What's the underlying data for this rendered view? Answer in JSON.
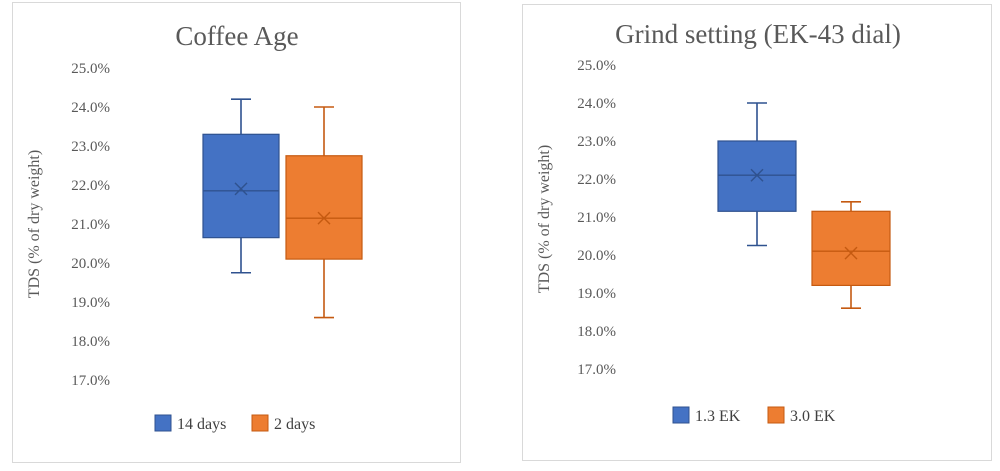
{
  "chart_data": [
    {
      "type": "box",
      "title": "Coffee Age",
      "ylabel": "TDS (% of dry weight)",
      "ylim": [
        17.0,
        25.0
      ],
      "ytick_step": 1.0,
      "ytick_labels": [
        "17.0%",
        "18.0%",
        "19.0%",
        "20.0%",
        "21.0%",
        "22.0%",
        "23.0%",
        "24.0%",
        "25.0%"
      ],
      "grid": false,
      "legend_position": "bottom",
      "series": [
        {
          "name": "14 days",
          "color": "#4472C4",
          "edge_color": "#2F528F",
          "min": 19.75,
          "q1": 20.65,
          "median": 21.85,
          "mean": 21.9,
          "q3": 23.3,
          "max": 24.2
        },
        {
          "name": "2 days",
          "color": "#ED7D31",
          "edge_color": "#C55A11",
          "min": 18.6,
          "q1": 20.1,
          "median": 21.15,
          "mean": 21.15,
          "q3": 22.75,
          "max": 24.0
        }
      ]
    },
    {
      "type": "box",
      "title": "Grind setting (EK-43 dial)",
      "ylabel": "TDS (% of dry weight)",
      "ylim": [
        17.0,
        25.0
      ],
      "ytick_step": 1.0,
      "ytick_labels": [
        "17.0%",
        "18.0%",
        "19.0%",
        "20.0%",
        "21.0%",
        "22.0%",
        "23.0%",
        "24.0%",
        "25.0%"
      ],
      "grid": false,
      "legend_position": "bottom",
      "series": [
        {
          "name": "1.3 EK",
          "color": "#4472C4",
          "edge_color": "#2F528F",
          "min": 20.25,
          "q1": 21.15,
          "median": 22.1,
          "mean": 22.1,
          "q3": 23.0,
          "max": 24.0
        },
        {
          "name": "3.0 EK",
          "color": "#ED7D31",
          "edge_color": "#C55A11",
          "min": 18.6,
          "q1": 19.2,
          "median": 20.1,
          "mean": 20.05,
          "q3": 21.15,
          "max": 21.4
        }
      ]
    }
  ]
}
